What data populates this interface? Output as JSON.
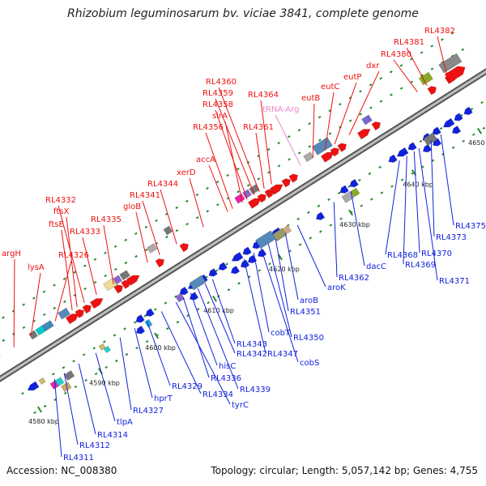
{
  "title": "Rhizobium leguminosarum bv. viciae 3841, complete genome",
  "accession": "Accession: NC_008380",
  "topology": "Topology: circular; Length: 5,057,142 bp; Genes: 4,755",
  "colors": {
    "forward": "#ee1111",
    "reverse": "#1122dd",
    "trna": "#ee88cc",
    "backbone": "#888888"
  },
  "ticks": [
    "4580 kbp",
    "4590 kbp",
    "4600 kbp",
    "4610 kbp",
    "4620 kbp",
    "4630 kbp",
    "4640 kbp",
    "4650 kbp"
  ],
  "upper_labels": [
    "argH",
    "lysA",
    "RL4326",
    "ftsE",
    "ftsX",
    "RL4332",
    "RL4333",
    "RL4335",
    "gloB",
    "RL4341",
    "RL4344",
    "xerD",
    "accA",
    "RL4356",
    "sirA",
    "RL4358",
    "RL4359",
    "RL4360",
    "RL4361",
    "RL4364",
    "tRNA-Arg",
    "eutB",
    "eutC",
    "eutP",
    "dxr",
    "RL4380",
    "RL4381",
    "RL4382"
  ],
  "lower_labels": [
    "RL4311",
    "RL4312",
    "RL4314",
    "tlpA",
    "RL4327",
    "hprT",
    "RL4329",
    "RL4334",
    "tyrC",
    "RL4336",
    "hisC",
    "RL4339",
    "RL4342",
    "RL4343",
    "RL4347",
    "cobT",
    "cobS",
    "RL4350",
    "RL4351",
    "aroB",
    "aroK",
    "RL4362",
    "dacC",
    "RL4368",
    "RL4369",
    "RL4370",
    "RL4371",
    "RL4373",
    "RL4375"
  ]
}
